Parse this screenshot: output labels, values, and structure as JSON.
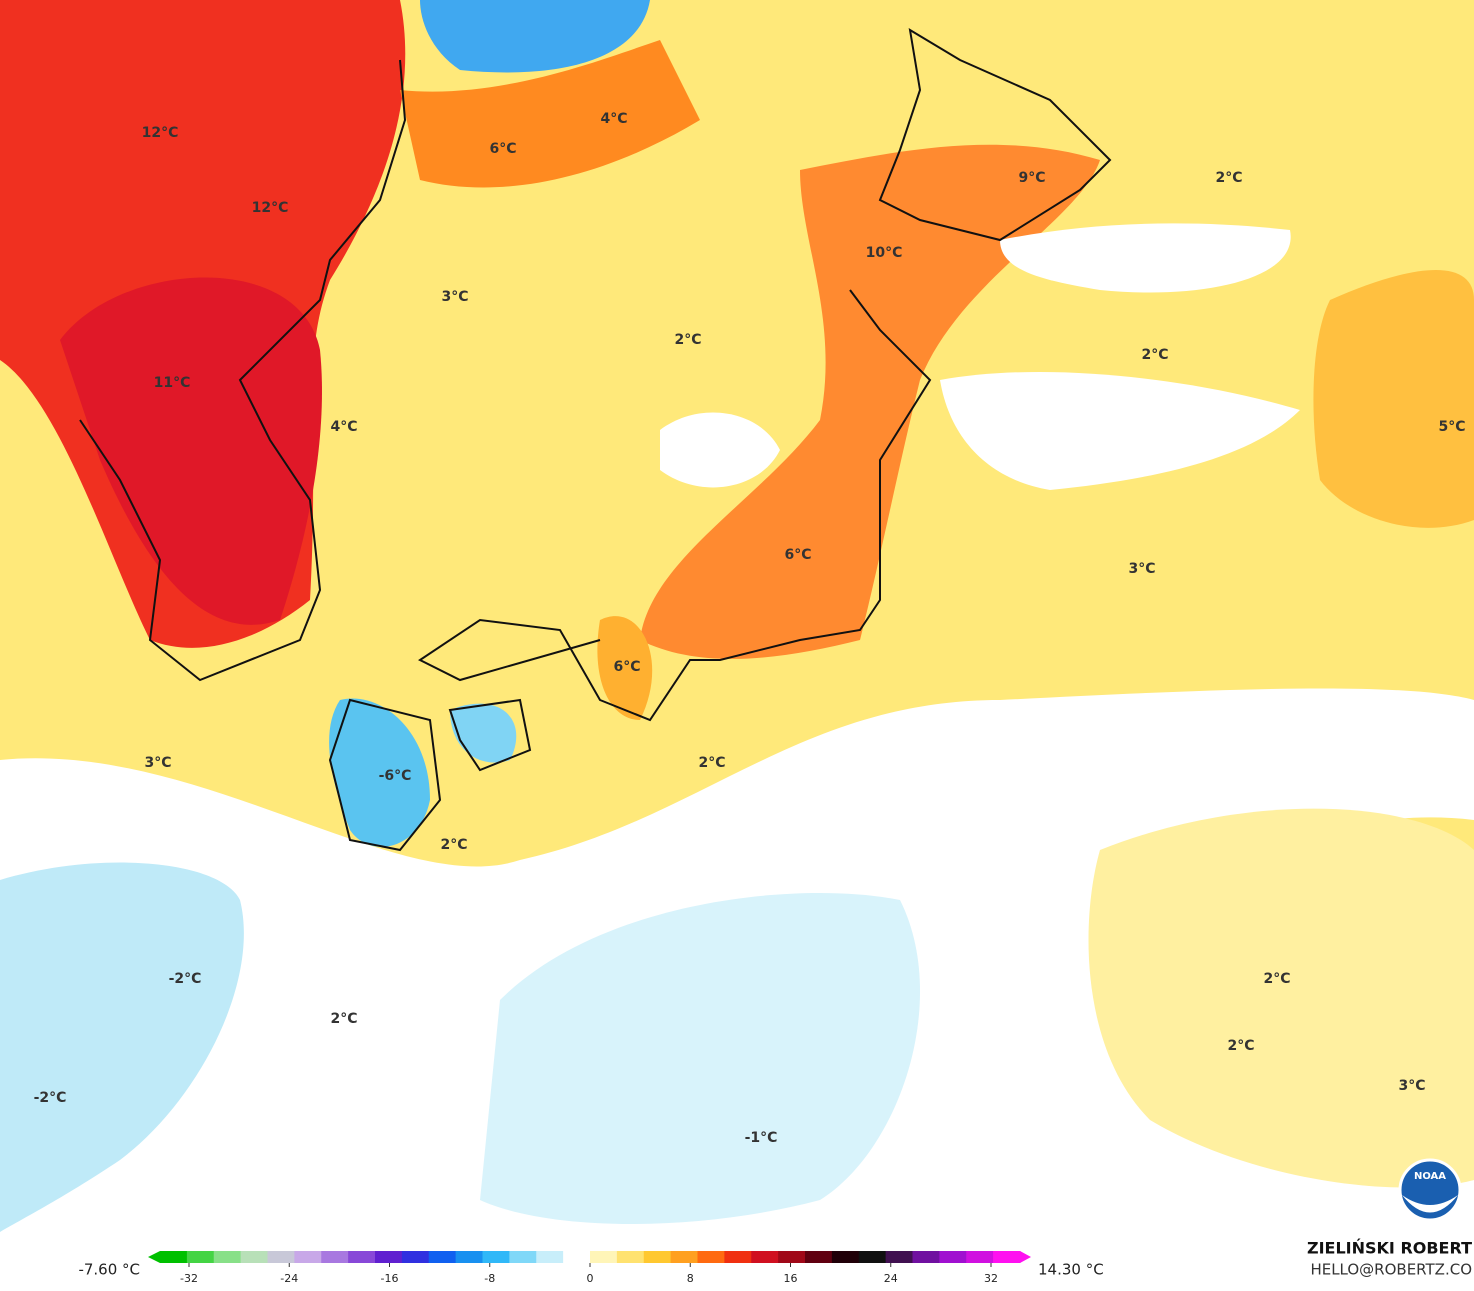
{
  "map": {
    "labels": [
      "12°C",
      "12°C",
      "11°C",
      "6°C",
      "4°C",
      "3°C",
      "2°C",
      "4°C",
      "10°C",
      "9°C",
      "2°C",
      "2°C",
      "5°C",
      "3°C",
      "6°C",
      "6°C",
      "-6°C",
      "3°C",
      "2°C",
      "2°C",
      "-2°C",
      "2°C",
      "-2°C",
      "-1°C",
      "2°C",
      "2°C",
      "3°C"
    ],
    "logo": "NOAA"
  },
  "colorbar": {
    "min_label": "-7.60 °C",
    "max_label": "14.30 °C",
    "ticks": [
      -32,
      -24,
      -16,
      -8,
      0,
      8,
      16,
      24,
      32
    ],
    "colors": [
      "#00c000",
      "#44d444",
      "#88e088",
      "#b8e0b8",
      "#c8c8d8",
      "#c8a8e8",
      "#a878e0",
      "#8848d8",
      "#6020d0",
      "#3030e0",
      "#1060f0",
      "#1890f0",
      "#30b8f8",
      "#80d8f8",
      "#c8eefa",
      "#ffffff",
      "#fff5b8",
      "#ffe270",
      "#ffc830",
      "#ffa020",
      "#ff6a10",
      "#f03010",
      "#d01020",
      "#a00818",
      "#600010",
      "#200008",
      "#101010",
      "#401050",
      "#7010a0",
      "#a010d0",
      "#d010e0",
      "#ff10f0"
    ]
  },
  "credit": {
    "name": "ZIELIŃSKI ROBERT",
    "email": "HELLO@ROBERTZ.CO"
  }
}
